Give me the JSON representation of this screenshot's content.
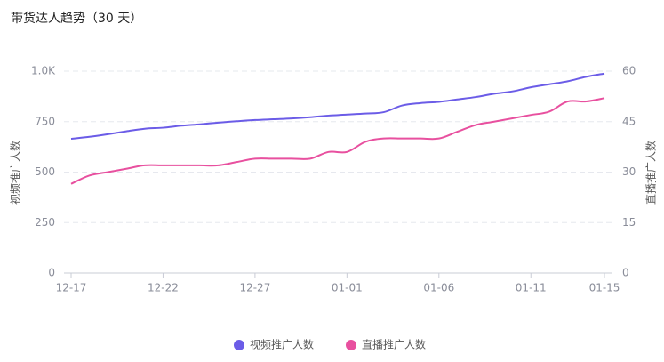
{
  "chart_data": {
    "type": "line",
    "title": "带货达人趋势（30 天）",
    "y_label": "视频推广人数",
    "y2_label": "直播推广人数",
    "categories": [
      "12-17",
      null,
      null,
      null,
      null,
      "12-22",
      null,
      null,
      null,
      null,
      "12-27",
      null,
      null,
      null,
      null,
      "01-01",
      null,
      null,
      null,
      null,
      "01-06",
      null,
      null,
      null,
      null,
      "01-11",
      null,
      null,
      null,
      "01-15"
    ],
    "series": [
      {
        "name": "视频推广人数",
        "color": "#6b5ce7",
        "values": [
          665,
          675,
          688,
          702,
          715,
          720,
          730,
          737,
          745,
          752,
          758,
          762,
          766,
          772,
          780,
          785,
          790,
          797,
          830,
          842,
          848,
          860,
          872,
          888,
          900,
          920,
          935,
          950,
          972,
          988
        ]
      },
      {
        "name": "直播推广人数",
        "color": "#e8509f",
        "axis": "y2",
        "values": [
          26.5,
          29,
          30,
          31,
          32,
          32,
          32,
          32,
          32,
          33,
          34,
          34,
          34,
          34,
          36,
          36,
          39,
          40,
          40,
          40,
          40,
          42,
          44,
          45,
          46,
          47,
          48,
          51,
          51,
          52
        ]
      }
    ],
    "ylim": [
      0,
      1000
    ],
    "yticks": [
      0,
      250,
      500,
      750,
      {
        "value": 1000,
        "label": "1.0K"
      }
    ],
    "y2lim": [
      0,
      60
    ],
    "y2ticks": [
      0,
      15,
      30,
      45,
      60
    ],
    "grid": true,
    "legend": "bottom"
  }
}
